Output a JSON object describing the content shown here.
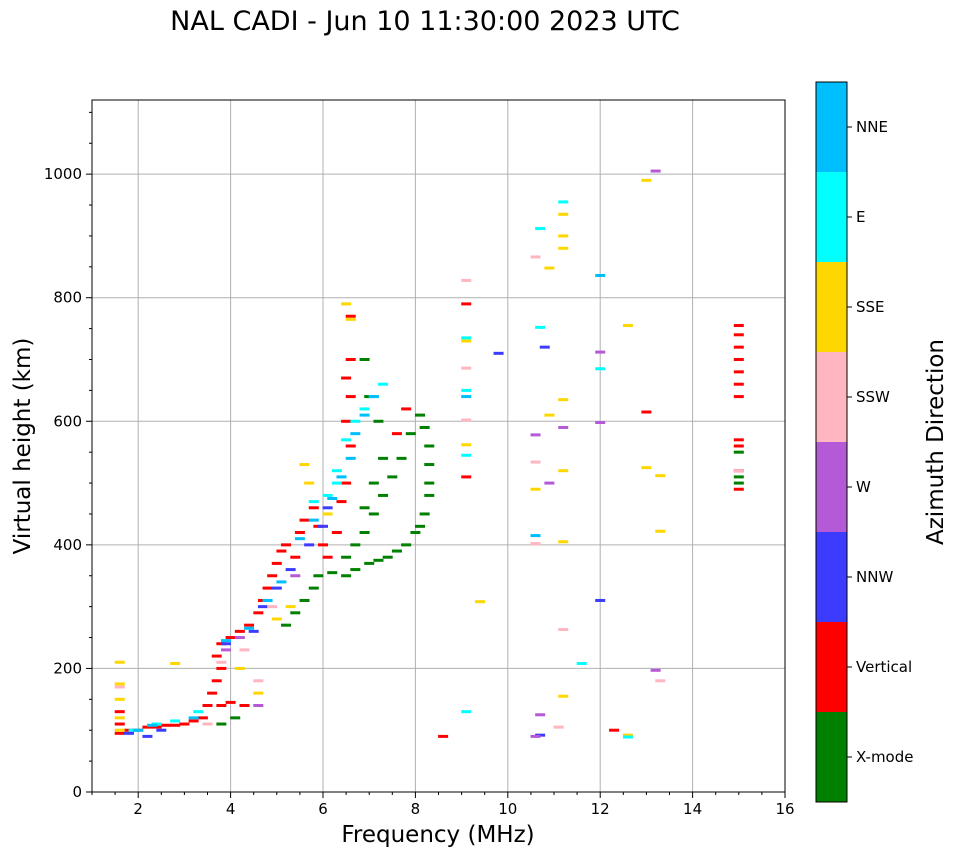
{
  "chart_data": {
    "type": "scatter",
    "title": "NAL CADI - Jun 10 11:30:00 2023 UTC",
    "xlabel": "Frequency (MHz)",
    "ylabel": "Virtual height (km)",
    "xlim": [
      1,
      16
    ],
    "ylim": [
      0,
      1120
    ],
    "xticks": [
      2,
      4,
      6,
      8,
      10,
      12,
      14,
      16
    ],
    "yticks": [
      0,
      200,
      400,
      600,
      800,
      1000
    ],
    "grid": true,
    "colorbar": {
      "label": "Azimuth Direction",
      "categories": [
        {
          "name": "X-mode",
          "color": "#008000"
        },
        {
          "name": "Vertical",
          "color": "#ff0000"
        },
        {
          "name": "NNW",
          "color": "#3c3cff"
        },
        {
          "name": "W",
          "color": "#b55ad6"
        },
        {
          "name": "SSW",
          "color": "#ffb6c1"
        },
        {
          "name": "SSE",
          "color": "#ffd700"
        },
        {
          "name": "E",
          "color": "#00ffff"
        },
        {
          "name": "NNE",
          "color": "#00bfff"
        }
      ]
    },
    "series": [
      {
        "name": "X-mode",
        "points": [
          [
            3.8,
            110
          ],
          [
            4.1,
            120
          ],
          [
            5.2,
            270
          ],
          [
            5.4,
            290
          ],
          [
            5.6,
            310
          ],
          [
            5.8,
            330
          ],
          [
            5.9,
            350
          ],
          [
            6.2,
            355
          ],
          [
            6.5,
            350
          ],
          [
            6.7,
            360
          ],
          [
            7.0,
            370
          ],
          [
            7.2,
            375
          ],
          [
            7.4,
            380
          ],
          [
            7.6,
            390
          ],
          [
            7.8,
            400
          ],
          [
            8.0,
            420
          ],
          [
            8.1,
            430
          ],
          [
            8.2,
            450
          ],
          [
            8.3,
            480
          ],
          [
            8.3,
            500
          ],
          [
            8.3,
            530
          ],
          [
            8.3,
            560
          ],
          [
            8.2,
            590
          ],
          [
            8.1,
            610
          ],
          [
            7.9,
            580
          ],
          [
            7.7,
            540
          ],
          [
            7.5,
            510
          ],
          [
            7.3,
            480
          ],
          [
            7.1,
            450
          ],
          [
            6.9,
            420
          ],
          [
            6.7,
            400
          ],
          [
            6.5,
            380
          ],
          [
            6.9,
            460
          ],
          [
            7.1,
            500
          ],
          [
            7.3,
            540
          ],
          [
            7.2,
            600
          ],
          [
            7.0,
            640
          ],
          [
            6.9,
            700
          ],
          [
            15.0,
            550
          ],
          [
            15.0,
            510
          ],
          [
            15.0,
            500
          ]
        ]
      },
      {
        "name": "Vertical",
        "points": [
          [
            1.6,
            95
          ],
          [
            1.6,
            110
          ],
          [
            1.6,
            130
          ],
          [
            1.8,
            100
          ],
          [
            2.0,
            100
          ],
          [
            2.2,
            105
          ],
          [
            2.4,
            105
          ],
          [
            2.6,
            108
          ],
          [
            2.8,
            108
          ],
          [
            3.0,
            110
          ],
          [
            3.2,
            115
          ],
          [
            3.4,
            120
          ],
          [
            3.5,
            140
          ],
          [
            3.6,
            160
          ],
          [
            3.7,
            180
          ],
          [
            3.8,
            200
          ],
          [
            3.7,
            220
          ],
          [
            3.8,
            240
          ],
          [
            4.0,
            250
          ],
          [
            4.2,
            260
          ],
          [
            4.4,
            270
          ],
          [
            4.6,
            290
          ],
          [
            4.7,
            310
          ],
          [
            4.8,
            330
          ],
          [
            4.9,
            350
          ],
          [
            5.0,
            370
          ],
          [
            5.1,
            390
          ],
          [
            5.2,
            400
          ],
          [
            5.4,
            380
          ],
          [
            5.5,
            420
          ],
          [
            5.6,
            440
          ],
          [
            5.8,
            460
          ],
          [
            5.9,
            430
          ],
          [
            6.0,
            400
          ],
          [
            6.1,
            380
          ],
          [
            6.3,
            420
          ],
          [
            6.4,
            470
          ],
          [
            6.5,
            500
          ],
          [
            6.6,
            560
          ],
          [
            6.5,
            600
          ],
          [
            6.6,
            640
          ],
          [
            6.5,
            670
          ],
          [
            6.6,
            700
          ],
          [
            6.6,
            770
          ],
          [
            3.8,
            140
          ],
          [
            4.0,
            145
          ],
          [
            4.3,
            140
          ],
          [
            7.6,
            580
          ],
          [
            7.8,
            620
          ],
          [
            8.6,
            90
          ],
          [
            9.1,
            510
          ],
          [
            9.1,
            790
          ],
          [
            12.3,
            100
          ],
          [
            13.0,
            615
          ],
          [
            15.0,
            490
          ],
          [
            15.0,
            520
          ],
          [
            15.0,
            560
          ],
          [
            15.0,
            570
          ],
          [
            15.0,
            640
          ],
          [
            15.0,
            660
          ],
          [
            15.0,
            680
          ],
          [
            15.0,
            700
          ],
          [
            15.0,
            720
          ],
          [
            15.0,
            740
          ],
          [
            15.0,
            755
          ]
        ]
      },
      {
        "name": "NNW",
        "points": [
          [
            1.8,
            95
          ],
          [
            2.2,
            90
          ],
          [
            2.5,
            100
          ],
          [
            3.9,
            240
          ],
          [
            4.5,
            260
          ],
          [
            4.7,
            300
          ],
          [
            5.0,
            330
          ],
          [
            5.3,
            360
          ],
          [
            5.7,
            400
          ],
          [
            6.0,
            430
          ],
          [
            6.1,
            460
          ],
          [
            9.8,
            710
          ],
          [
            10.8,
            720
          ],
          [
            10.7,
            92
          ],
          [
            12.0,
            310
          ]
        ]
      },
      {
        "name": "W",
        "points": [
          [
            3.9,
            230
          ],
          [
            4.2,
            250
          ],
          [
            4.6,
            140
          ],
          [
            5.4,
            350
          ],
          [
            10.6,
            90
          ],
          [
            10.7,
            125
          ],
          [
            10.6,
            578
          ],
          [
            10.9,
            500
          ],
          [
            11.2,
            590
          ],
          [
            12.0,
            598
          ],
          [
            12.0,
            712
          ],
          [
            13.2,
            1005
          ],
          [
            13.2,
            197
          ]
        ]
      },
      {
        "name": "SSW",
        "points": [
          [
            1.6,
            170
          ],
          [
            3.5,
            110
          ],
          [
            3.8,
            210
          ],
          [
            4.3,
            230
          ],
          [
            4.6,
            180
          ],
          [
            4.9,
            300
          ],
          [
            9.1,
            602
          ],
          [
            9.1,
            686
          ],
          [
            9.1,
            828
          ],
          [
            10.6,
            534
          ],
          [
            10.6,
            866
          ],
          [
            10.6,
            402
          ],
          [
            11.1,
            105
          ],
          [
            11.2,
            263
          ],
          [
            13.3,
            180
          ],
          [
            15.0,
            520
          ]
        ]
      },
      {
        "name": "SSE",
        "points": [
          [
            1.6,
            100
          ],
          [
            1.6,
            120
          ],
          [
            1.6,
            150
          ],
          [
            1.6,
            175
          ],
          [
            1.6,
            210
          ],
          [
            2.8,
            208
          ],
          [
            4.2,
            200
          ],
          [
            4.6,
            160
          ],
          [
            5.0,
            280
          ],
          [
            5.3,
            300
          ],
          [
            5.6,
            530
          ],
          [
            5.7,
            500
          ],
          [
            6.5,
            790
          ],
          [
            6.6,
            765
          ],
          [
            6.1,
            450
          ],
          [
            9.1,
            562
          ],
          [
            9.1,
            730
          ],
          [
            9.4,
            308
          ],
          [
            10.6,
            490
          ],
          [
            10.9,
            610
          ],
          [
            10.9,
            848
          ],
          [
            11.2,
            155
          ],
          [
            11.2,
            405
          ],
          [
            11.2,
            520
          ],
          [
            11.2,
            635
          ],
          [
            11.2,
            880
          ],
          [
            11.2,
            900
          ],
          [
            11.2,
            935
          ],
          [
            12.6,
            92
          ],
          [
            12.6,
            755
          ],
          [
            13.0,
            525
          ],
          [
            13.0,
            990
          ],
          [
            13.3,
            422
          ],
          [
            13.3,
            512
          ]
        ]
      },
      {
        "name": "E",
        "points": [
          [
            1.9,
            100
          ],
          [
            2.4,
            110
          ],
          [
            2.8,
            115
          ],
          [
            3.3,
            130
          ],
          [
            6.1,
            480
          ],
          [
            6.3,
            500
          ],
          [
            6.3,
            520
          ],
          [
            6.5,
            570
          ],
          [
            6.7,
            600
          ],
          [
            6.9,
            620
          ],
          [
            7.1,
            640
          ],
          [
            7.3,
            660
          ],
          [
            5.8,
            470
          ],
          [
            9.1,
            130
          ],
          [
            9.1,
            545
          ],
          [
            9.1,
            650
          ],
          [
            9.1,
            735
          ],
          [
            10.7,
            752
          ],
          [
            10.7,
            912
          ],
          [
            11.2,
            955
          ],
          [
            11.6,
            208
          ],
          [
            12.6,
            89
          ],
          [
            12.0,
            685
          ]
        ]
      },
      {
        "name": "NNE",
        "points": [
          [
            2.0,
            100
          ],
          [
            2.3,
            108
          ],
          [
            3.2,
            120
          ],
          [
            3.9,
            245
          ],
          [
            4.4,
            265
          ],
          [
            4.8,
            310
          ],
          [
            5.1,
            340
          ],
          [
            5.5,
            410
          ],
          [
            5.8,
            440
          ],
          [
            6.2,
            475
          ],
          [
            6.4,
            510
          ],
          [
            6.6,
            540
          ],
          [
            6.7,
            580
          ],
          [
            6.9,
            610
          ],
          [
            7.1,
            640
          ],
          [
            9.1,
            640
          ],
          [
            10.6,
            415
          ],
          [
            12.0,
            836
          ]
        ]
      }
    ]
  }
}
